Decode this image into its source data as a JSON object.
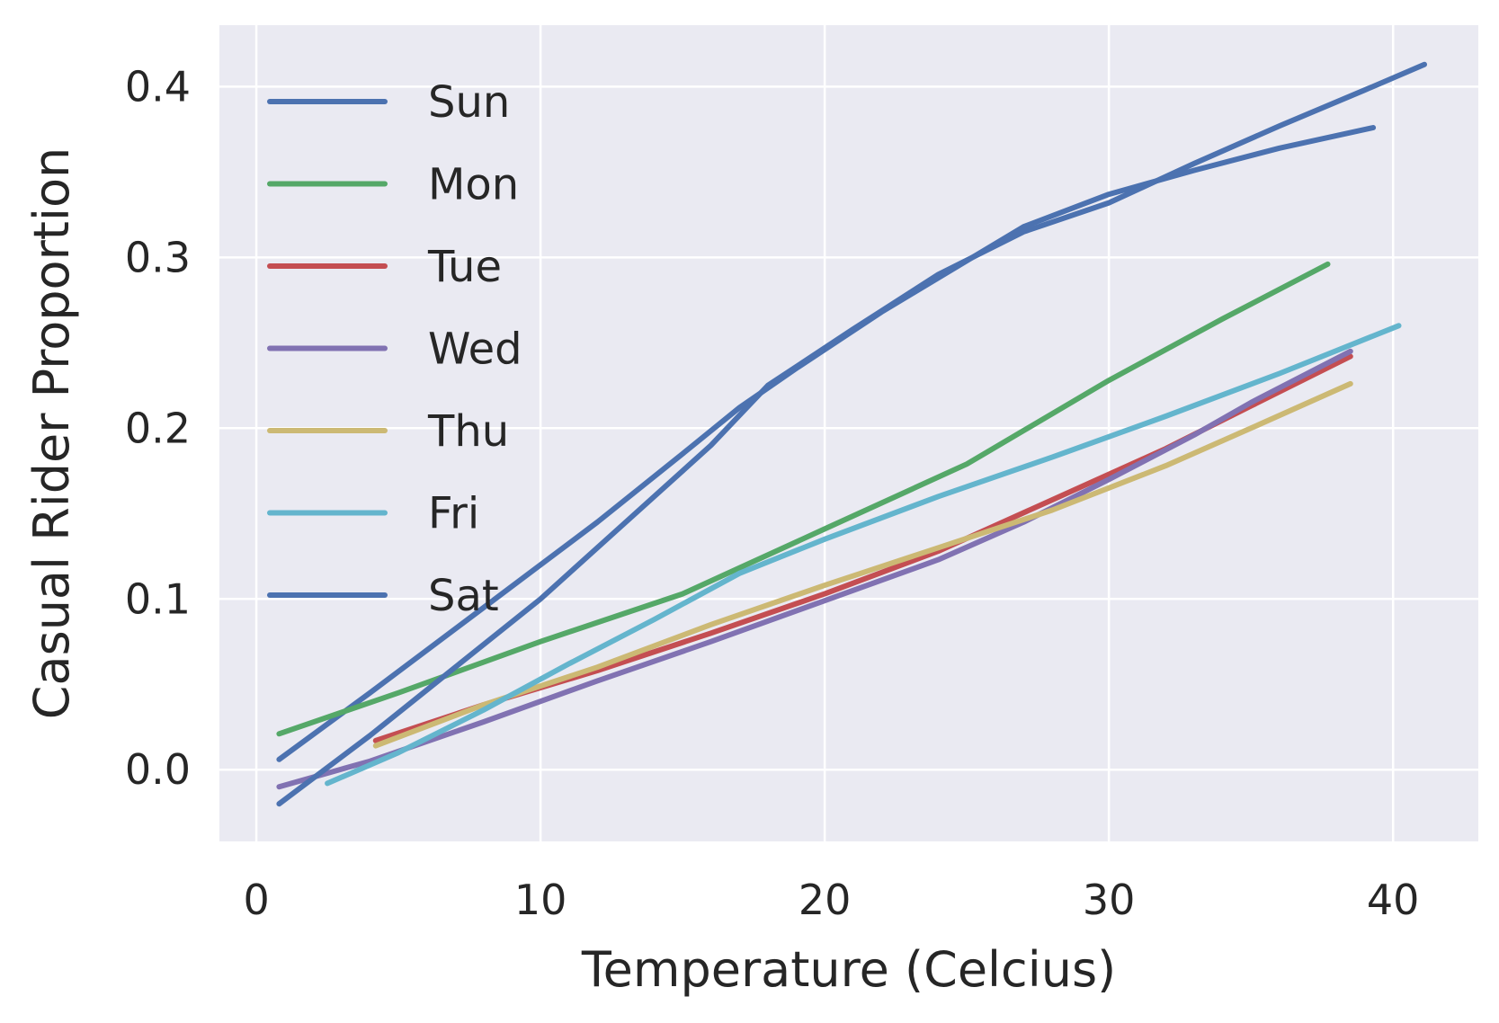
{
  "chart_data": {
    "type": "line",
    "xlabel": "Temperature (Celcius)",
    "ylabel": "Casual Rider Proportion",
    "xlim": [
      -1.3,
      43.0
    ],
    "ylim": [
      -0.042,
      0.436
    ],
    "xticks": [
      0,
      10,
      20,
      30,
      40
    ],
    "xtick_labels": [
      "0",
      "10",
      "20",
      "30",
      "40"
    ],
    "yticks": [
      0.0,
      0.1,
      0.2,
      0.3,
      0.4
    ],
    "ytick_labels": [
      "0.0",
      "0.1",
      "0.2",
      "0.3",
      "0.4"
    ],
    "grid": true,
    "legend_position": "upper-left",
    "background": "#EAEAF2",
    "series": [
      {
        "name": "Sun",
        "color": "#4C72B0",
        "x": [
          0.8,
          4,
          8,
          12,
          15,
          17,
          19,
          22,
          25,
          27,
          30,
          33,
          36,
          39.3
        ],
        "y": [
          0.006,
          0.045,
          0.095,
          0.145,
          0.185,
          0.212,
          0.235,
          0.268,
          0.298,
          0.318,
          0.337,
          0.351,
          0.364,
          0.376
        ]
      },
      {
        "name": "Mon",
        "color": "#55A868",
        "x": [
          0.8,
          5,
          10,
          15,
          20,
          25,
          30,
          34,
          37.7
        ],
        "y": [
          0.021,
          0.045,
          0.075,
          0.103,
          0.141,
          0.179,
          0.228,
          0.264,
          0.296
        ]
      },
      {
        "name": "Tue",
        "color": "#C44E52",
        "x": [
          4.2,
          8,
          12,
          16,
          20,
          24,
          28,
          32,
          35,
          38.5
        ],
        "y": [
          0.017,
          0.038,
          0.058,
          0.08,
          0.103,
          0.128,
          0.158,
          0.188,
          0.213,
          0.242
        ]
      },
      {
        "name": "Wed",
        "color": "#8172B2",
        "x": [
          0.8,
          4,
          8,
          12,
          16,
          20,
          24,
          27,
          30,
          33,
          35,
          38.5
        ],
        "y": [
          -0.01,
          0.005,
          0.028,
          0.052,
          0.075,
          0.099,
          0.123,
          0.145,
          0.17,
          0.196,
          0.215,
          0.245
        ]
      },
      {
        "name": "Thu",
        "color": "#CCB974",
        "x": [
          4.2,
          8,
          12,
          16,
          20,
          24,
          28,
          32,
          35,
          38.5
        ],
        "y": [
          0.014,
          0.038,
          0.06,
          0.085,
          0.108,
          0.13,
          0.152,
          0.178,
          0.2,
          0.226
        ]
      },
      {
        "name": "Fri",
        "color": "#64B5CD",
        "x": [
          2.5,
          5,
          8,
          11,
          14,
          17,
          20,
          24,
          28,
          32,
          36,
          40.2
        ],
        "y": [
          -0.008,
          0.01,
          0.035,
          0.062,
          0.088,
          0.115,
          0.135,
          0.16,
          0.183,
          0.207,
          0.232,
          0.26
        ]
      },
      {
        "name": "Sat",
        "color": "#4C72B0",
        "x": [
          0.8,
          4,
          7,
          10,
          13,
          16,
          18,
          21,
          24,
          27,
          30,
          33,
          36,
          39,
          41.1
        ],
        "y": [
          -0.02,
          0.02,
          0.06,
          0.1,
          0.145,
          0.19,
          0.225,
          0.258,
          0.29,
          0.315,
          0.332,
          0.355,
          0.377,
          0.398,
          0.413
        ]
      }
    ]
  }
}
